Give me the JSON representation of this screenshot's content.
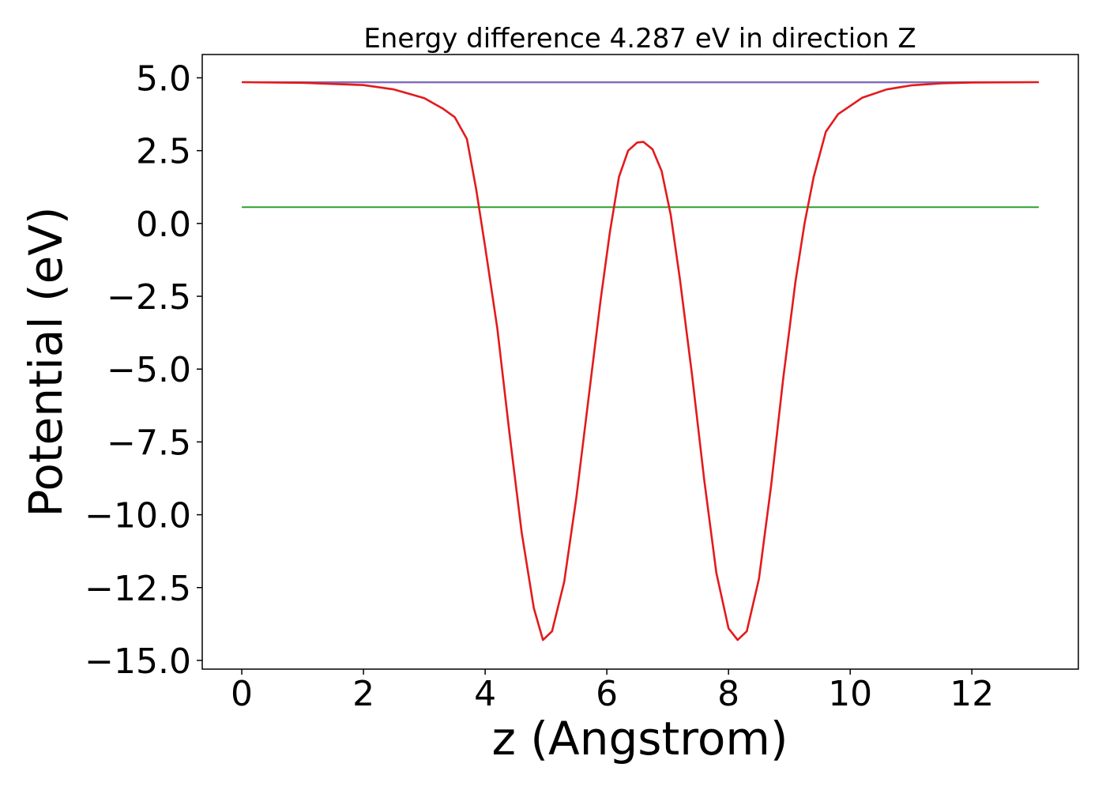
{
  "chart_data": {
    "type": "line",
    "title": "Energy difference 4.287 eV in direction Z",
    "xlabel": "z (Angstrom)",
    "ylabel": "Potential (eV)",
    "xlim": [
      -0.65,
      13.75
    ],
    "ylim": [
      -15.3,
      5.8
    ],
    "xticks": [
      0,
      2,
      4,
      6,
      8,
      10,
      12
    ],
    "xtick_labels": [
      "0",
      "2",
      "4",
      "6",
      "8",
      "10",
      "12"
    ],
    "yticks": [
      5.0,
      2.5,
      0.0,
      -2.5,
      -5.0,
      -7.5,
      -10.0,
      -12.5,
      -15.0
    ],
    "ytick_labels": [
      "5.0",
      "2.5",
      "0.0",
      "−2.5",
      "−5.0",
      "−7.5",
      "−10.0",
      "−12.5",
      "−15.0"
    ],
    "grid": false,
    "legend": false,
    "series": [
      {
        "color": "#1f77b4",
        "x": [
          0,
          13.1
        ],
        "y": [
          4.85,
          4.85
        ]
      },
      {
        "color": "#2ca02c",
        "x": [
          0,
          13.1
        ],
        "y": [
          0.56,
          0.56
        ]
      },
      {
        "color": "#9467bd",
        "x": [
          0,
          1.5,
          12.0,
          13.1
        ],
        "y": [
          4.85,
          4.84,
          4.84,
          4.85
        ]
      },
      {
        "color": "#e31a1c",
        "x": [
          0,
          1.0,
          2.0,
          2.5,
          3.0,
          3.3,
          3.5,
          3.7,
          3.85,
          4.0,
          4.2,
          4.4,
          4.6,
          4.8,
          4.95,
          5.1,
          5.3,
          5.5,
          5.7,
          5.9,
          6.05,
          6.2,
          6.35,
          6.5,
          6.6,
          6.75,
          6.9,
          7.05,
          7.2,
          7.4,
          7.6,
          7.8,
          8.0,
          8.15,
          8.3,
          8.5,
          8.7,
          8.9,
          9.1,
          9.25,
          9.4,
          9.6,
          9.8,
          10.2,
          10.6,
          11.0,
          11.5,
          12.0,
          13.1
        ],
        "y": [
          4.85,
          4.83,
          4.75,
          4.6,
          4.3,
          3.95,
          3.65,
          2.9,
          1.2,
          -0.8,
          -3.6,
          -7.2,
          -10.6,
          -13.2,
          -14.3,
          -14.0,
          -12.3,
          -9.4,
          -6.0,
          -2.6,
          -0.3,
          1.6,
          2.5,
          2.78,
          2.8,
          2.55,
          1.8,
          0.3,
          -1.9,
          -5.2,
          -8.8,
          -12.0,
          -13.9,
          -14.3,
          -14.0,
          -12.2,
          -9.0,
          -5.3,
          -2.0,
          0.0,
          1.6,
          3.15,
          3.75,
          4.32,
          4.6,
          4.74,
          4.81,
          4.84,
          4.85
        ]
      }
    ]
  }
}
